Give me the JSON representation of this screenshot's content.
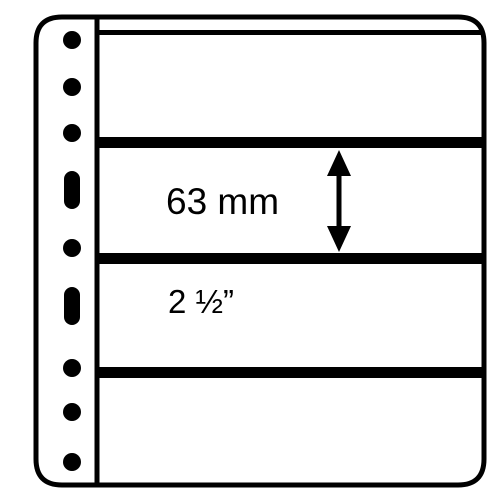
{
  "sheet": {
    "border_color": "#000000",
    "background_color": "#ffffff",
    "pocket_count": 4,
    "punch_hole_shapes": [
      "round",
      "round",
      "round",
      "slot",
      "round",
      "slot",
      "round",
      "round",
      "round"
    ]
  },
  "labels": {
    "pocket_height_metric": "63 mm",
    "pocket_height_imperial": "2 ½”"
  },
  "icons": {
    "dimension_arrow": "double-headed-vertical-arrow-icon"
  }
}
